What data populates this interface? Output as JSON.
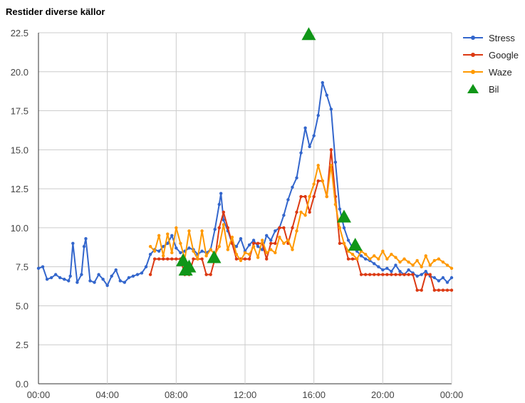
{
  "chart_data": {
    "type": "line",
    "title": "Restider diverse källor",
    "xlabel": "",
    "ylabel": "",
    "xlim": [
      0,
      24
    ],
    "ylim": [
      0,
      22.5
    ],
    "x_ticks": [
      0,
      4,
      8,
      12,
      16,
      20,
      24
    ],
    "x_tick_labels": [
      "00:00",
      "04:00",
      "08:00",
      "12:00",
      "16:00",
      "20:00",
      "00:00"
    ],
    "y_ticks": [
      0,
      2.5,
      5,
      7.5,
      10,
      12.5,
      15,
      17.5,
      20,
      22.5
    ],
    "y_tick_labels": [
      "0.0",
      "2.5",
      "5.0",
      "7.5",
      "10.0",
      "12.5",
      "15.0",
      "17.5",
      "20.0",
      "22.5"
    ],
    "grid": true,
    "legend_position": "right",
    "series": [
      {
        "name": "Stress",
        "color": "#3366cc",
        "marker": "dot",
        "x": [
          0,
          0.25,
          0.5,
          0.75,
          1,
          1.25,
          1.5,
          1.75,
          1.85,
          2,
          2.25,
          2.5,
          2.65,
          2.75,
          3,
          3.25,
          3.5,
          3.75,
          4,
          4.25,
          4.5,
          4.75,
          5,
          5.25,
          5.5,
          5.75,
          6,
          6.25,
          6.5,
          6.75,
          7,
          7.25,
          7.5,
          7.75,
          8,
          8.25,
          8.5,
          8.75,
          9,
          9.25,
          9.5,
          9.75,
          10,
          10.25,
          10.5,
          10.6,
          10.75,
          11,
          11.25,
          11.5,
          11.75,
          12,
          12.25,
          12.5,
          12.75,
          13,
          13.25,
          13.5,
          13.75,
          14,
          14.25,
          14.5,
          14.75,
          15,
          15.25,
          15.5,
          15.75,
          16,
          16.25,
          16.5,
          16.75,
          17,
          17.25,
          17.5,
          17.75,
          18,
          18.25,
          18.5,
          18.75,
          19,
          19.25,
          19.5,
          19.75,
          20,
          20.25,
          20.5,
          20.75,
          21,
          21.25,
          21.5,
          21.75,
          22,
          22.25,
          22.5,
          22.75,
          23,
          23.25,
          23.5,
          23.75,
          24
        ],
        "values": [
          7.4,
          7.5,
          6.7,
          6.8,
          7.0,
          6.8,
          6.7,
          6.6,
          6.9,
          9.0,
          6.5,
          7.0,
          8.8,
          9.3,
          6.6,
          6.5,
          7.0,
          6.7,
          6.3,
          6.9,
          7.3,
          6.6,
          6.5,
          6.8,
          6.9,
          7.0,
          7.1,
          7.5,
          8.3,
          8.6,
          8.5,
          8.8,
          9.0,
          9.5,
          8.7,
          8.4,
          8.5,
          8.7,
          8.6,
          8.3,
          8.5,
          8.4,
          8.6,
          9.9,
          11.5,
          12.2,
          10.5,
          9.8,
          9.0,
          8.8,
          9.3,
          8.5,
          8.9,
          9.2,
          8.8,
          8.6,
          9.5,
          9.2,
          9.8,
          10.0,
          10.8,
          11.8,
          12.6,
          13.2,
          14.8,
          16.4,
          15.2,
          15.9,
          17.2,
          19.3,
          18.5,
          17.6,
          14.2,
          11.2,
          10.0,
          9.2,
          8.7,
          8.5,
          8.2,
          8.0,
          7.9,
          7.7,
          7.5,
          7.3,
          7.4,
          7.2,
          7.6,
          7.2,
          7.0,
          7.3,
          7.1,
          6.9,
          7.0,
          7.2,
          6.9,
          6.8,
          6.6,
          6.8,
          6.5,
          6.8
        ]
      },
      {
        "name": "Google",
        "color": "#dc3912",
        "marker": "dot",
        "x": [
          6.5,
          6.75,
          7,
          7.25,
          7.5,
          7.75,
          8,
          8.25,
          8.5,
          8.75,
          9,
          9.25,
          9.5,
          9.75,
          10,
          10.25,
          10.5,
          10.75,
          11,
          11.25,
          11.5,
          11.75,
          12,
          12.25,
          12.5,
          12.75,
          13,
          13.25,
          13.5,
          13.75,
          14,
          14.25,
          14.5,
          14.75,
          15,
          15.25,
          15.5,
          15.75,
          16,
          16.25,
          16.5,
          16.75,
          17,
          17.25,
          17.5,
          17.75,
          18,
          18.25,
          18.5,
          18.75,
          19,
          19.25,
          19.5,
          19.75,
          20,
          20.25,
          20.5,
          20.75,
          21,
          21.25,
          21.5,
          21.75,
          22,
          22.25,
          22.5,
          22.75,
          23,
          23.25,
          23.5,
          23.75,
          24
        ],
        "values": [
          7.0,
          8.0,
          8.0,
          8.0,
          8.0,
          8.0,
          8.0,
          8.0,
          7.0,
          7.0,
          8.0,
          8.0,
          8.0,
          7.0,
          7.0,
          8.0,
          10.0,
          11.0,
          10.0,
          9.0,
          8.0,
          8.0,
          8.0,
          8.0,
          9.0,
          9.0,
          9.0,
          8.0,
          9.0,
          9.0,
          10.0,
          10.0,
          9.0,
          10.0,
          11.0,
          12.0,
          12.0,
          11.0,
          12.0,
          13.0,
          13.0,
          12.0,
          15.0,
          12.0,
          9.0,
          9.0,
          8.0,
          8.0,
          8.0,
          7.0,
          7.0,
          7.0,
          7.0,
          7.0,
          7.0,
          7.0,
          7.0,
          7.0,
          7.0,
          7.0,
          7.0,
          7.0,
          6.0,
          6.0,
          7.0,
          7.0,
          6.0,
          6.0,
          6.0,
          6.0,
          6.0
        ]
      },
      {
        "name": "Waze",
        "color": "#ff9900",
        "marker": "dot",
        "x": [
          6.5,
          6.75,
          7,
          7.25,
          7.5,
          7.75,
          8,
          8.25,
          8.5,
          8.75,
          9,
          9.25,
          9.5,
          9.75,
          10,
          10.25,
          10.5,
          10.75,
          11,
          11.25,
          11.5,
          11.75,
          12,
          12.25,
          12.5,
          12.75,
          13,
          13.25,
          13.5,
          13.75,
          14,
          14.25,
          14.5,
          14.75,
          15,
          15.25,
          15.5,
          15.75,
          16,
          16.25,
          16.5,
          16.75,
          17,
          17.25,
          17.5,
          17.75,
          18,
          18.25,
          18.5,
          18.75,
          19,
          19.25,
          19.5,
          19.75,
          20,
          20.25,
          20.5,
          20.75,
          21,
          21.25,
          21.5,
          21.75,
          22,
          22.25,
          22.5,
          22.75,
          23,
          23.25,
          23.5,
          23.75,
          24
        ],
        "values": [
          8.8,
          8.5,
          9.5,
          8.2,
          9.6,
          8.4,
          10.0,
          9.0,
          8.0,
          9.8,
          8.5,
          8.0,
          9.8,
          8.2,
          8.6,
          8.3,
          8.8,
          10.2,
          8.6,
          9.4,
          8.3,
          7.9,
          8.4,
          8.3,
          8.8,
          8.1,
          9.2,
          8.4,
          8.6,
          8.4,
          9.4,
          9.0,
          9.2,
          8.6,
          9.8,
          11.0,
          10.8,
          12.0,
          12.8,
          14.0,
          13.0,
          12.0,
          14.0,
          11.5,
          10.0,
          9.0,
          8.5,
          8.3,
          8.0,
          8.5,
          8.3,
          8.0,
          8.2,
          8.0,
          8.5,
          8.0,
          8.3,
          8.1,
          7.8,
          8.0,
          7.8,
          7.6,
          7.9,
          7.5,
          8.2,
          7.6,
          7.9,
          8.0,
          7.8,
          7.6,
          7.4
        ]
      },
      {
        "name": "Bil",
        "color": "#109618",
        "marker": "triangle",
        "x": [
          8.4,
          8.55,
          8.75,
          10.2,
          15.7,
          17.75,
          18.4
        ],
        "values": [
          7.9,
          7.3,
          7.5,
          8.1,
          22.4,
          10.7,
          8.9
        ]
      }
    ]
  }
}
